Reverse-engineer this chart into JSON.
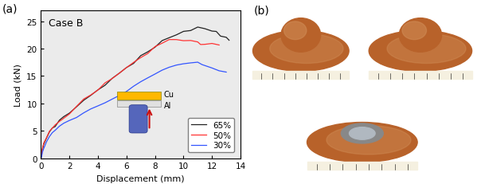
{
  "title": "Case B",
  "xlabel": "Displacement (mm)",
  "ylabel": "Load (kN)",
  "xlim": [
    0,
    14
  ],
  "ylim": [
    0,
    27
  ],
  "xticks": [
    0,
    2,
    4,
    6,
    8,
    10,
    12,
    14
  ],
  "yticks": [
    0,
    5,
    10,
    15,
    20,
    25
  ],
  "panel_label_left": "(a)",
  "panel_label_right": "(b)",
  "legend_entries": [
    "65%",
    "50%",
    "30%"
  ],
  "line_colors": [
    "#222222",
    "#ff3333",
    "#3355ff"
  ],
  "curve_65_x": [
    0,
    0.05,
    0.1,
    0.2,
    0.4,
    0.6,
    0.8,
    1.0,
    1.3,
    1.6,
    2.0,
    2.5,
    3.0,
    3.5,
    4.0,
    4.5,
    5.0,
    5.5,
    6.0,
    6.5,
    7.0,
    7.5,
    8.0,
    8.5,
    9.0,
    9.5,
    10.0,
    10.5,
    11.0,
    11.5,
    12.0,
    12.3,
    12.6,
    13.0,
    13.2
  ],
  "curve_65_y": [
    0,
    0.6,
    1.5,
    2.5,
    3.8,
    4.8,
    5.5,
    6.0,
    6.8,
    7.5,
    8.3,
    9.4,
    10.5,
    11.5,
    12.5,
    13.5,
    14.5,
    15.5,
    16.5,
    17.5,
    18.5,
    19.4,
    20.3,
    21.2,
    22.0,
    22.7,
    23.2,
    23.6,
    23.8,
    23.7,
    23.3,
    23.0,
    22.5,
    22.0,
    21.8
  ],
  "curve_50_x": [
    0,
    0.05,
    0.1,
    0.2,
    0.4,
    0.6,
    0.8,
    1.0,
    1.3,
    1.6,
    2.0,
    2.5,
    3.0,
    3.5,
    4.0,
    4.5,
    5.0,
    5.5,
    6.0,
    6.5,
    7.0,
    7.5,
    8.0,
    8.5,
    9.0,
    9.5,
    10.0,
    10.5,
    11.0,
    11.2,
    11.5,
    12.0,
    12.5
  ],
  "curve_50_y": [
    0,
    0.6,
    1.5,
    2.5,
    3.8,
    4.8,
    5.5,
    6.0,
    6.8,
    7.5,
    8.3,
    9.4,
    10.5,
    11.5,
    12.5,
    13.5,
    14.5,
    15.5,
    16.5,
    17.5,
    18.4,
    19.3,
    20.3,
    21.0,
    21.5,
    21.7,
    21.7,
    21.5,
    21.0,
    20.8,
    20.9,
    21.1,
    20.8
  ],
  "curve_30_x": [
    0,
    0.05,
    0.1,
    0.2,
    0.4,
    0.6,
    0.8,
    1.0,
    1.3,
    1.6,
    2.0,
    2.5,
    3.0,
    3.5,
    4.0,
    4.5,
    5.0,
    5.5,
    6.0,
    6.5,
    7.0,
    7.5,
    8.0,
    8.5,
    9.0,
    9.5,
    10.0,
    10.5,
    11.0,
    11.3,
    12.0,
    12.5,
    13.0
  ],
  "curve_30_y": [
    0,
    0.3,
    0.9,
    1.8,
    3.0,
    3.8,
    4.5,
    5.1,
    5.8,
    6.3,
    6.9,
    7.6,
    8.2,
    8.9,
    9.5,
    10.2,
    10.8,
    11.5,
    12.2,
    13.0,
    13.8,
    14.6,
    15.3,
    16.0,
    16.6,
    17.0,
    17.3,
    17.4,
    17.3,
    17.0,
    16.5,
    16.0,
    15.8
  ],
  "bg_color": "#ebebeb",
  "cu_color": "#FFB800",
  "al_color": "#E0E0E0",
  "punch_color": "#5566BB",
  "arrow_color": "#CC1111",
  "photo_bg": "#c0c0c0",
  "copper_disc_color": "#B8622A",
  "copper_dark": "#8B4513",
  "copper_light": "#D2905A"
}
